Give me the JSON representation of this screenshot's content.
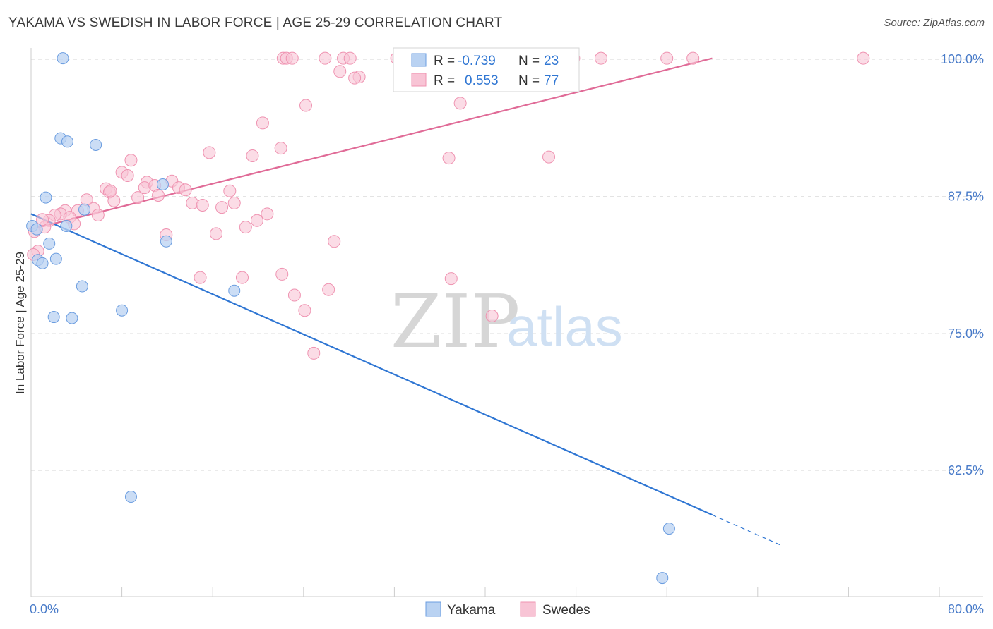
{
  "header": {
    "title": "YAKAMA VS SWEDISH IN LABOR FORCE | AGE 25-29 CORRELATION CHART",
    "source": "Source: ZipAtlas.com"
  },
  "watermark": {
    "part1": "ZIP",
    "part2": "atlas"
  },
  "colors": {
    "yakama_fill": "#b9d2f2",
    "yakama_stroke": "#6b9de0",
    "yakama_line": "#2f76d3",
    "swedes_fill": "#f8c4d5",
    "swedes_stroke": "#ef93b1",
    "swedes_line": "#e06b97",
    "grid": "#e3e3e3",
    "tick_text": "#4a7cc9"
  },
  "legend_box": {
    "rows": [
      {
        "r_label": "R =",
        "r_value": "-0.739",
        "n_label": "N =",
        "n_value": "23"
      },
      {
        "r_label": "R =",
        "r_value": "0.553",
        "n_label": "N =",
        "n_value": "77"
      }
    ]
  },
  "chart_data": {
    "type": "scatter",
    "title": "YAKAMA VS SWEDISH IN LABOR FORCE | AGE 25-29 CORRELATION CHART",
    "xlabel": "",
    "ylabel": "In Labor Force | Age 25-29",
    "xlim": [
      0,
      80
    ],
    "ylim": [
      51,
      101.3
    ],
    "x_tick_labels": [
      "0.0%",
      "80.0%"
    ],
    "y_ticks": [
      62.5,
      75.0,
      87.5,
      100.0
    ],
    "y_tick_labels": [
      "62.5%",
      "75.0%",
      "87.5%",
      "100.0%"
    ],
    "grid": "horizontal dashed",
    "legend_position": "bottom-center",
    "series": [
      {
        "name": "Yakama",
        "r": -0.739,
        "n": 23,
        "trend": {
          "x": [
            0,
            80
          ],
          "y": [
            85.9,
            49.3
          ],
          "solid_until_x": 60
        },
        "points": [
          [
            2.8,
            100.1
          ],
          [
            2.6,
            92.8
          ],
          [
            3.2,
            92.5
          ],
          [
            5.7,
            92.2
          ],
          [
            1.3,
            87.4
          ],
          [
            4.7,
            86.3
          ],
          [
            0.1,
            84.8
          ],
          [
            3.1,
            84.8
          ],
          [
            11.6,
            88.6
          ],
          [
            1.6,
            83.2
          ],
          [
            11.9,
            83.4
          ],
          [
            0.6,
            81.7
          ],
          [
            1.0,
            81.4
          ],
          [
            2.2,
            81.8
          ],
          [
            4.5,
            79.3
          ],
          [
            17.9,
            78.9
          ],
          [
            2.0,
            76.5
          ],
          [
            3.6,
            76.4
          ],
          [
            8.0,
            77.1
          ],
          [
            8.8,
            60.1
          ],
          [
            56.2,
            57.2
          ],
          [
            55.6,
            52.7
          ],
          [
            0.5,
            84.5
          ]
        ]
      },
      {
        "name": "Swedes",
        "r": 0.553,
        "n": 77,
        "trend": {
          "x": [
            0,
            60
          ],
          "y": [
            84.5,
            100.1
          ]
        },
        "points": [
          [
            22.2,
            100.1
          ],
          [
            22.5,
            100.1
          ],
          [
            23.0,
            100.1
          ],
          [
            25.9,
            100.1
          ],
          [
            27.5,
            100.1
          ],
          [
            28.1,
            100.1
          ],
          [
            32.2,
            100.1
          ],
          [
            33.4,
            100.1
          ],
          [
            37.5,
            100.1
          ],
          [
            42.2,
            100.1
          ],
          [
            43.0,
            100.1
          ],
          [
            47.8,
            100.1
          ],
          [
            50.2,
            100.1
          ],
          [
            56.0,
            100.1
          ],
          [
            58.3,
            100.1
          ],
          [
            73.3,
            100.1
          ],
          [
            27.2,
            98.9
          ],
          [
            28.9,
            98.4
          ],
          [
            28.5,
            98.3
          ],
          [
            24.2,
            95.8
          ],
          [
            37.8,
            96.0
          ],
          [
            20.4,
            94.2
          ],
          [
            22.0,
            91.9
          ],
          [
            15.7,
            91.5
          ],
          [
            19.5,
            91.2
          ],
          [
            36.8,
            91.0
          ],
          [
            45.6,
            91.1
          ],
          [
            8.8,
            90.8
          ],
          [
            8.0,
            89.7
          ],
          [
            8.5,
            89.4
          ],
          [
            12.4,
            88.9
          ],
          [
            10.2,
            88.8
          ],
          [
            6.6,
            88.2
          ],
          [
            10.0,
            88.3
          ],
          [
            10.9,
            88.5
          ],
          [
            13.0,
            88.3
          ],
          [
            13.6,
            88.1
          ],
          [
            17.5,
            88.0
          ],
          [
            6.9,
            87.9
          ],
          [
            11.2,
            87.6
          ],
          [
            4.9,
            87.2
          ],
          [
            7.3,
            87.1
          ],
          [
            9.4,
            87.4
          ],
          [
            14.2,
            86.9
          ],
          [
            15.1,
            86.7
          ],
          [
            16.8,
            86.5
          ],
          [
            17.9,
            86.9
          ],
          [
            3.0,
            86.2
          ],
          [
            5.5,
            86.4
          ],
          [
            2.6,
            85.9
          ],
          [
            4.1,
            86.2
          ],
          [
            3.4,
            85.6
          ],
          [
            2.1,
            85.8
          ],
          [
            1.6,
            85.3
          ],
          [
            5.9,
            85.8
          ],
          [
            20.8,
            85.9
          ],
          [
            19.9,
            85.3
          ],
          [
            1.2,
            84.7
          ],
          [
            3.8,
            85.0
          ],
          [
            18.9,
            84.7
          ],
          [
            16.3,
            84.1
          ],
          [
            11.9,
            84.0
          ],
          [
            26.7,
            83.4
          ],
          [
            0.6,
            82.5
          ],
          [
            0.3,
            84.3
          ],
          [
            14.9,
            80.1
          ],
          [
            18.6,
            80.1
          ],
          [
            22.1,
            80.4
          ],
          [
            37.0,
            80.0
          ],
          [
            26.2,
            79.0
          ],
          [
            23.2,
            78.5
          ],
          [
            24.1,
            77.1
          ],
          [
            40.6,
            76.6
          ],
          [
            24.9,
            73.2
          ],
          [
            1.0,
            85.4
          ],
          [
            0.2,
            82.2
          ],
          [
            7.0,
            88.0
          ]
        ]
      }
    ]
  },
  "bottom_legend": {
    "items": [
      {
        "label": "Yakama"
      },
      {
        "label": "Swedes"
      }
    ]
  }
}
